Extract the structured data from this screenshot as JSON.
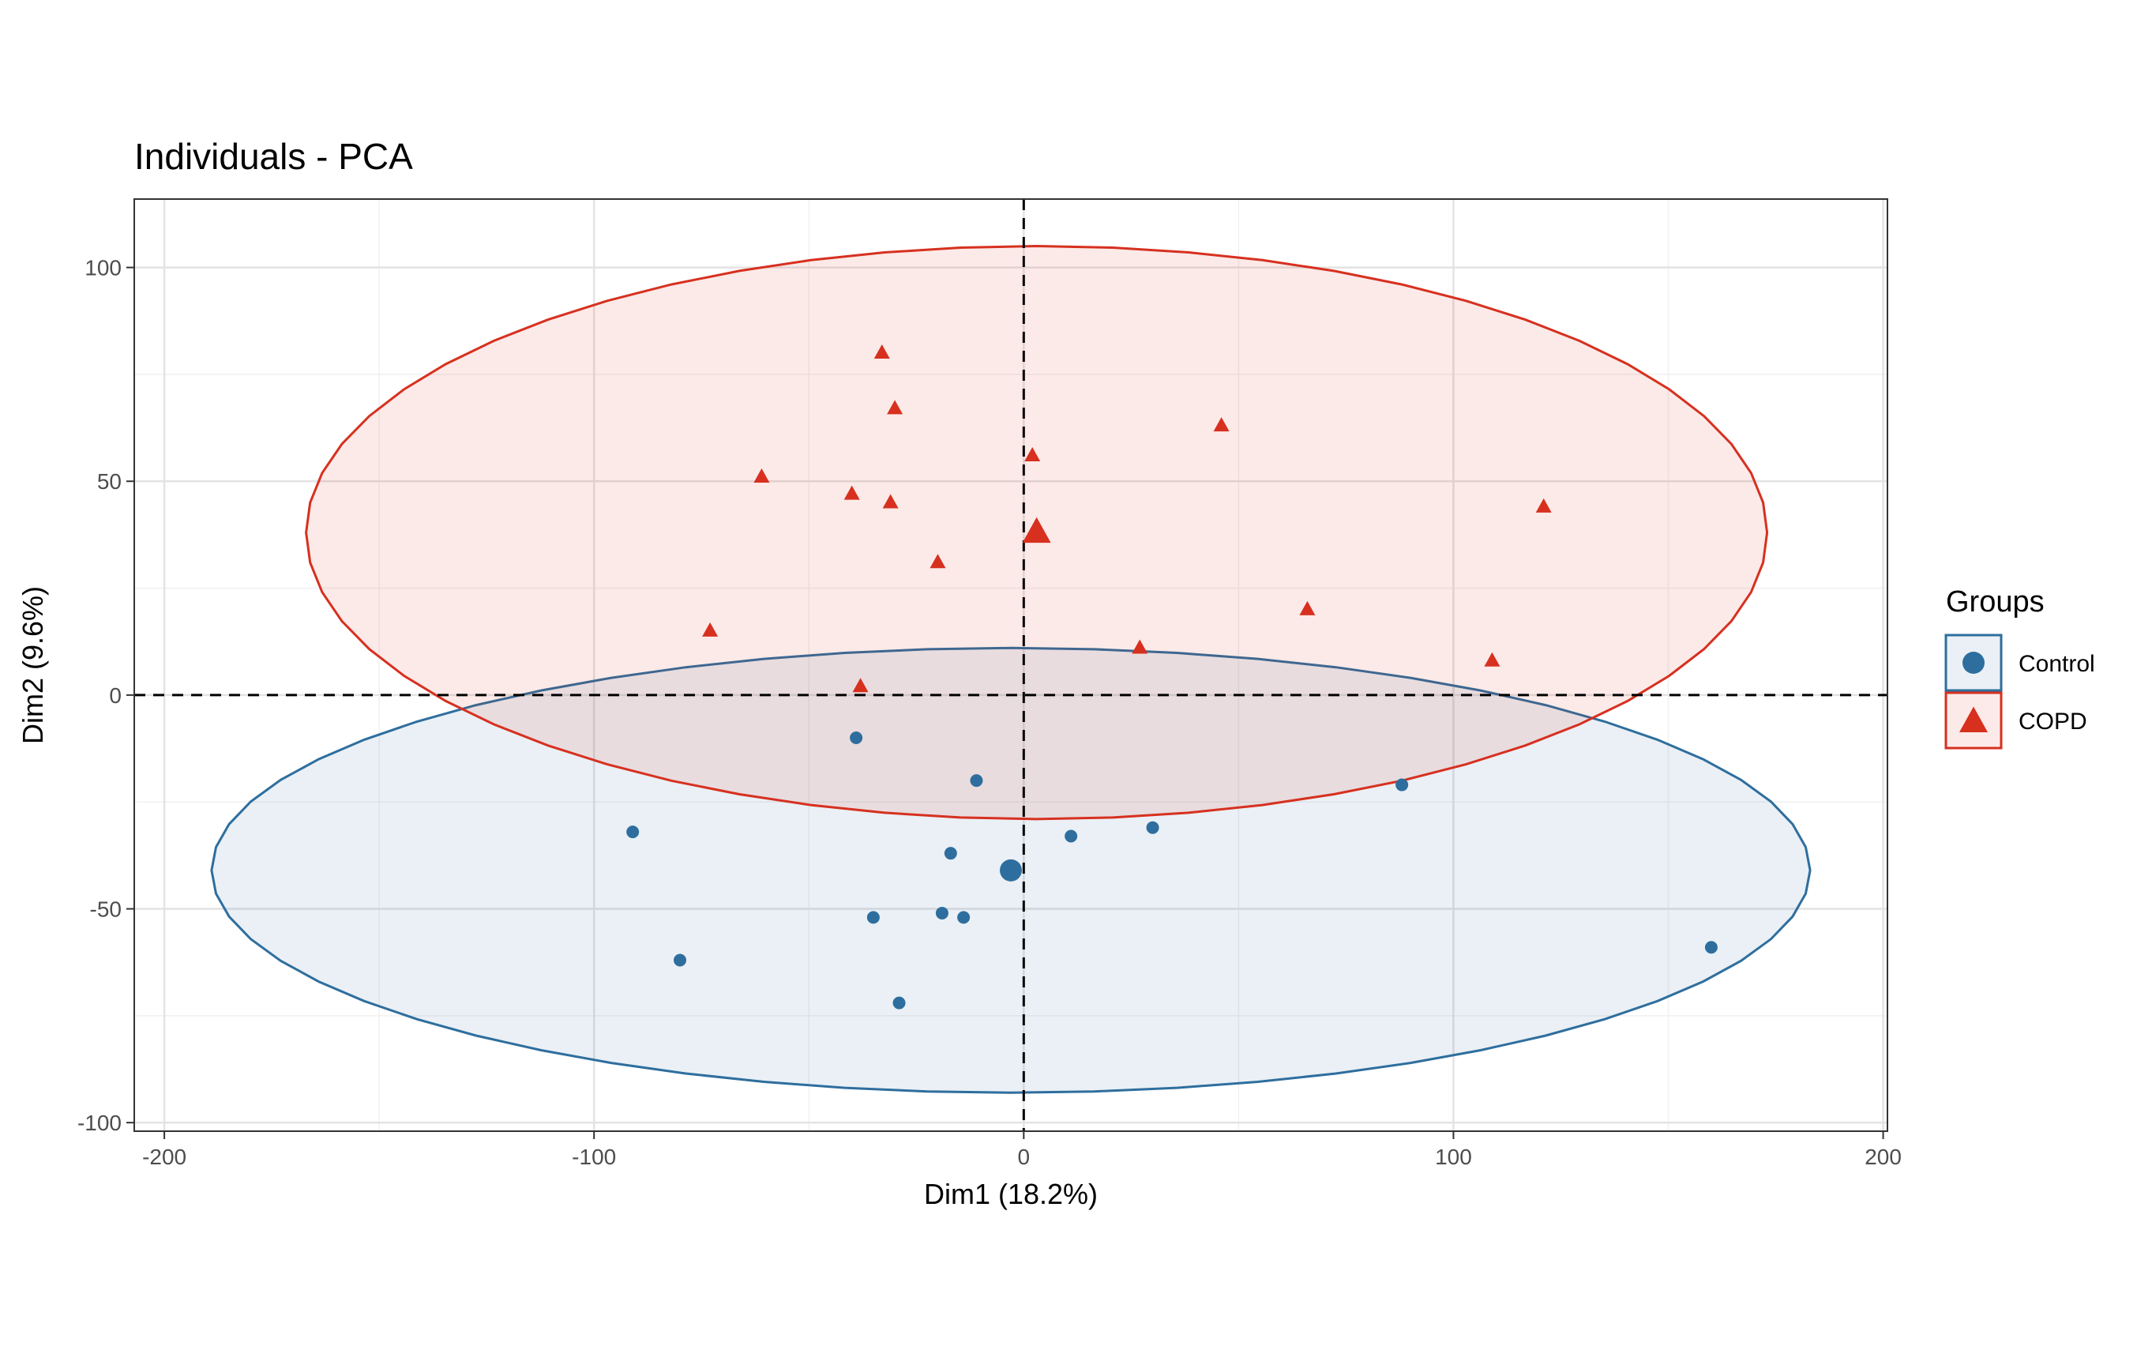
{
  "chart_data": {
    "type": "scatter",
    "title": "Individuals - PCA",
    "xlabel": "Dim1 (18.2%)",
    "ylabel": "Dim2 (9.6%)",
    "xlim": [
      -207,
      201
    ],
    "ylim": [
      -102,
      116
    ],
    "x_ticks": [
      -200,
      -100,
      0,
      100,
      200
    ],
    "y_ticks": [
      -100,
      -50,
      0,
      50,
      100
    ],
    "grid": true,
    "reference_lines": {
      "x": 0,
      "y": 0,
      "style": "dashed"
    },
    "legend": {
      "title": "Groups",
      "position": "right"
    },
    "series": [
      {
        "name": "Control",
        "color": "#2E6E9E",
        "shape": "circle",
        "points": [
          [
            -39,
            -10
          ],
          [
            -11,
            -20
          ],
          [
            88,
            -21
          ],
          [
            -91,
            -32
          ],
          [
            11,
            -33
          ],
          [
            30,
            -31
          ],
          [
            -17,
            -37
          ],
          [
            -35,
            -52
          ],
          [
            -19,
            -51
          ],
          [
            -14,
            -52
          ],
          [
            -80,
            -62
          ],
          [
            -29,
            -72
          ],
          [
            160,
            -59
          ]
        ],
        "centroid": [
          -3,
          -41
        ],
        "ellipse": {
          "cx": -3,
          "cy": -41,
          "rx": 186,
          "ry": 52
        }
      },
      {
        "name": "COPD",
        "color": "#D7301F",
        "shape": "triangle",
        "points": [
          [
            -33,
            80
          ],
          [
            -30,
            67
          ],
          [
            2,
            56
          ],
          [
            46,
            63
          ],
          [
            -61,
            51
          ],
          [
            -40,
            47
          ],
          [
            -31,
            45
          ],
          [
            121,
            44
          ],
          [
            -20,
            31
          ],
          [
            66,
            20
          ],
          [
            -73,
            15
          ],
          [
            27,
            11
          ],
          [
            109,
            8
          ],
          [
            -38,
            2
          ]
        ],
        "centroid": [
          3,
          38
        ],
        "ellipse": {
          "cx": 3,
          "cy": 38,
          "rx": 170,
          "ry": 67
        }
      }
    ]
  }
}
